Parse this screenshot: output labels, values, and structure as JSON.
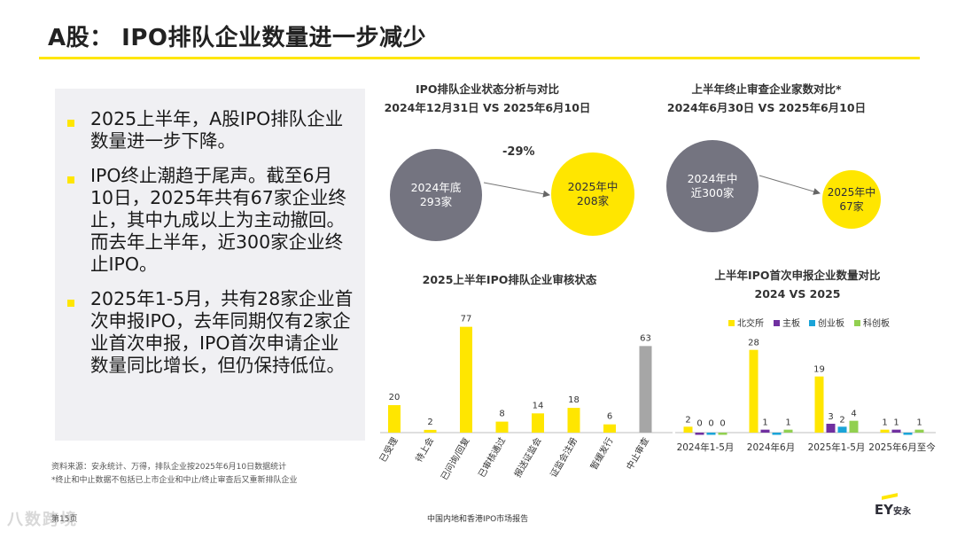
{
  "page": {
    "title": "A股：  IPO排队企业数量进一步减少",
    "footer": "中国内地和香港IPO市场报告",
    "page_no": "第15页",
    "watermark": "八数跨境",
    "logo": "EY",
    "logo_cn": "安永"
  },
  "colors": {
    "yellow": "#ffe600",
    "gray": "#a6a6a6",
    "circle_gray": "#747480",
    "purple": "#7030a0",
    "blue": "#1aa4d8",
    "green": "#92d050"
  },
  "bullets": [
    "2025上半年，A股IPO排队企业数量进一步下降。",
    "IPO终止潮趋于尾声。截至6月10日，2025年共有67家企业终止，其中九成以上为主动撤回。而去年上半年，近300家企业终止IPO。",
    "2025年1-5月，共有28家企业首次申报IPO，去年同期仅有2家企业首次申报，IPO首次申请企业数量同比增长，但仍保持低位。"
  ],
  "sources": [
    "资料来源：安永统计、万得，排队企业按2025年6月10日数据统计",
    "*终止和中止数据不包括已上市企业和中止/终止审查后又重新排队企业"
  ],
  "compare_a": {
    "title1": "IPO排队企业状态分析与对比",
    "title2": "2024年12月31日 VS 2025年6月10日",
    "change": "-29%",
    "left": {
      "line1": "2024年底",
      "line2": "293家"
    },
    "right": {
      "line1": "2025年中",
      "line2": "208家"
    }
  },
  "compare_b": {
    "title1": "上半年终止审查企业家数对比*",
    "title2": "2024年6月30日 VS 2025年6月10日",
    "left": {
      "line1": "2024年中",
      "line2": "近300家"
    },
    "right": {
      "line1": "2025年中",
      "line2": "67家"
    }
  },
  "chart_data": [
    {
      "type": "bar",
      "title": "2025上半年IPO排队企业审核状态",
      "categories": [
        "已受理",
        "待上会",
        "已问询/回复",
        "已审核通过",
        "报送证监会",
        "证监会注册",
        "暂缓发行",
        "中止审查"
      ],
      "values": [
        20,
        2,
        77,
        8,
        14,
        18,
        6,
        63
      ],
      "bar_colors": [
        "#ffe600",
        "#ffe600",
        "#ffe600",
        "#ffe600",
        "#ffe600",
        "#ffe600",
        "#ffe600",
        "#a6a6a6"
      ],
      "ylim": [
        0,
        80
      ]
    },
    {
      "type": "bar",
      "title": "上半年IPO首次申报企业数量对比",
      "subtitle": "2024 VS 2025",
      "categories": [
        "2024年1-5月",
        "2024年6月",
        "2025年1-5月",
        "2025年6月至今"
      ],
      "series": [
        {
          "name": "北交所",
          "color": "#ffe600",
          "values": [
            2,
            28,
            19,
            1
          ]
        },
        {
          "name": "主板",
          "color": "#7030a0",
          "values": [
            0,
            1,
            3,
            1
          ]
        },
        {
          "name": "创业板",
          "color": "#1aa4d8",
          "values": [
            0,
            0,
            2,
            0
          ]
        },
        {
          "name": "科创板",
          "color": "#92d050",
          "values": [
            0,
            1,
            4,
            1
          ]
        }
      ],
      "legend": "top",
      "ylim": [
        0,
        30
      ]
    }
  ]
}
